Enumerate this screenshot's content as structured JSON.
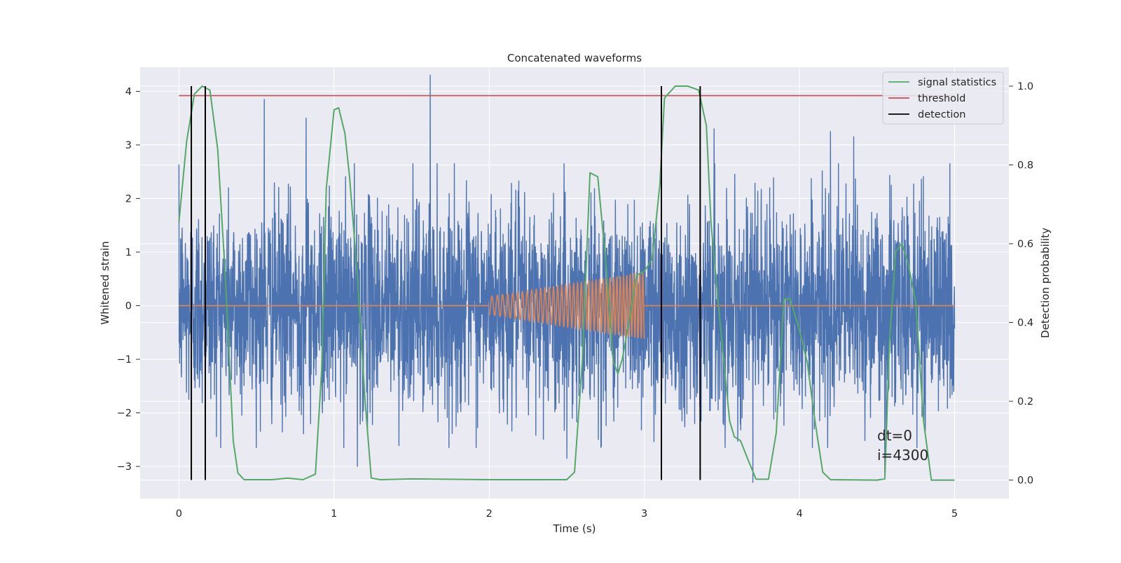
{
  "chart_data": {
    "type": "line",
    "title": "Concatenated waveforms",
    "xlabel": "Time (s)",
    "ylabel": "Whitened strain",
    "ylabel_right": "Detection probability",
    "xlim": [
      -0.25,
      5.35
    ],
    "ylim": [
      -3.6,
      4.45
    ],
    "ylim_right": [
      -0.047,
      1.048
    ],
    "xticks": [
      0,
      1,
      2,
      3,
      4,
      5
    ],
    "yticks": [
      -3,
      -2,
      -1,
      0,
      1,
      2,
      3,
      4
    ],
    "yticks_right": [
      0.0,
      0.2,
      0.4,
      0.6,
      0.8,
      1.0
    ],
    "yticklabels_right": [
      "0.0",
      "0.2",
      "0.4",
      "0.6",
      "0.8",
      "1.0"
    ],
    "grid": true,
    "legend_position": "top-right",
    "annotation": {
      "lines": [
        "dt=0",
        "i=4300"
      ],
      "x": 4.5,
      "y": -2.95
    },
    "colors": {
      "strain": "#4c72b0",
      "injection": "#dd8452",
      "statistic": "#55a868",
      "threshold": "#c44e52",
      "detection": "#000000",
      "background": "#eaeaf2",
      "grid": "#ffffff"
    },
    "series": [
      {
        "name": "",
        "axis": "left",
        "kind": "noise",
        "x_range": [
          0,
          5
        ],
        "sigma": 0.95,
        "n": 3600,
        "peaks": [
          [
            0.55,
            3.85
          ],
          [
            0.82,
            3.5
          ],
          [
            1.62,
            4.3
          ],
          [
            3.45,
            3.3
          ],
          [
            4.2,
            3.25
          ],
          [
            4.35,
            3.15
          ],
          [
            1.15,
            -3.0
          ],
          [
            2.5,
            -2.85
          ],
          [
            3.7,
            -3.3
          ],
          [
            4.55,
            -3.15
          ]
        ]
      },
      {
        "name": "",
        "axis": "left",
        "kind": "chirp",
        "segments": [
          [
            0,
            2.0,
            0.0
          ],
          [
            3.0,
            5.0,
            0.0
          ]
        ],
        "chirp": {
          "x_start": 2.0,
          "x_end": 3.0,
          "amp_start": 0.17,
          "amp_end": 0.62,
          "freq_start": 28,
          "freq_end": 50
        }
      },
      {
        "name": "signal statistics",
        "axis": "right",
        "points": [
          [
            0.0,
            0.655
          ],
          [
            0.05,
            0.86
          ],
          [
            0.1,
            0.98
          ],
          [
            0.15,
            1.0
          ],
          [
            0.2,
            0.99
          ],
          [
            0.25,
            0.84
          ],
          [
            0.3,
            0.51
          ],
          [
            0.35,
            0.1
          ],
          [
            0.38,
            0.018
          ],
          [
            0.42,
            0.001
          ],
          [
            0.6,
            0.001
          ],
          [
            0.7,
            0.005
          ],
          [
            0.8,
            0.001
          ],
          [
            0.88,
            0.015
          ],
          [
            0.92,
            0.28
          ],
          [
            0.95,
            0.74
          ],
          [
            1.0,
            0.94
          ],
          [
            1.03,
            0.945
          ],
          [
            1.07,
            0.88
          ],
          [
            1.1,
            0.77
          ],
          [
            1.15,
            0.52
          ],
          [
            1.2,
            0.2
          ],
          [
            1.24,
            0.005
          ],
          [
            1.3,
            0.001
          ],
          [
            1.5,
            0.003
          ],
          [
            2.0,
            0.001
          ],
          [
            2.5,
            0.001
          ],
          [
            2.55,
            0.02
          ],
          [
            2.6,
            0.3
          ],
          [
            2.65,
            0.78
          ],
          [
            2.7,
            0.77
          ],
          [
            2.75,
            0.56
          ],
          [
            2.8,
            0.3
          ],
          [
            2.83,
            0.27
          ],
          [
            2.86,
            0.31
          ],
          [
            2.9,
            0.4
          ],
          [
            2.95,
            0.52
          ],
          [
            3.0,
            0.53
          ],
          [
            3.05,
            0.56
          ],
          [
            3.1,
            0.75
          ],
          [
            3.13,
            0.97
          ],
          [
            3.2,
            1.0
          ],
          [
            3.28,
            1.0
          ],
          [
            3.35,
            0.99
          ],
          [
            3.4,
            0.9
          ],
          [
            3.43,
            0.65
          ],
          [
            3.5,
            0.35
          ],
          [
            3.55,
            0.15
          ],
          [
            3.58,
            0.11
          ],
          [
            3.62,
            0.1
          ],
          [
            3.67,
            0.05
          ],
          [
            3.72,
            0.002
          ],
          [
            3.8,
            0.002
          ],
          [
            3.85,
            0.12
          ],
          [
            3.9,
            0.46
          ],
          [
            3.94,
            0.46
          ],
          [
            4.0,
            0.38
          ],
          [
            4.05,
            0.3
          ],
          [
            4.1,
            0.15
          ],
          [
            4.15,
            0.02
          ],
          [
            4.2,
            0.001
          ],
          [
            4.5,
            0.0
          ],
          [
            4.55,
            0.003
          ],
          [
            4.58,
            0.35
          ],
          [
            4.62,
            0.58
          ],
          [
            4.66,
            0.6
          ],
          [
            4.7,
            0.55
          ],
          [
            4.75,
            0.45
          ],
          [
            4.8,
            0.15
          ],
          [
            4.85,
            0.0
          ],
          [
            5.0,
            0.0
          ]
        ]
      },
      {
        "name": "threshold",
        "axis": "left",
        "points": [
          [
            0.0,
            3.92
          ],
          [
            5.0,
            3.92
          ]
        ]
      },
      {
        "name": "detection",
        "axis": "right",
        "vlines": [
          0.08,
          0.17,
          3.11,
          3.36
        ],
        "y_range": [
          0.0,
          1.0
        ]
      }
    ]
  }
}
